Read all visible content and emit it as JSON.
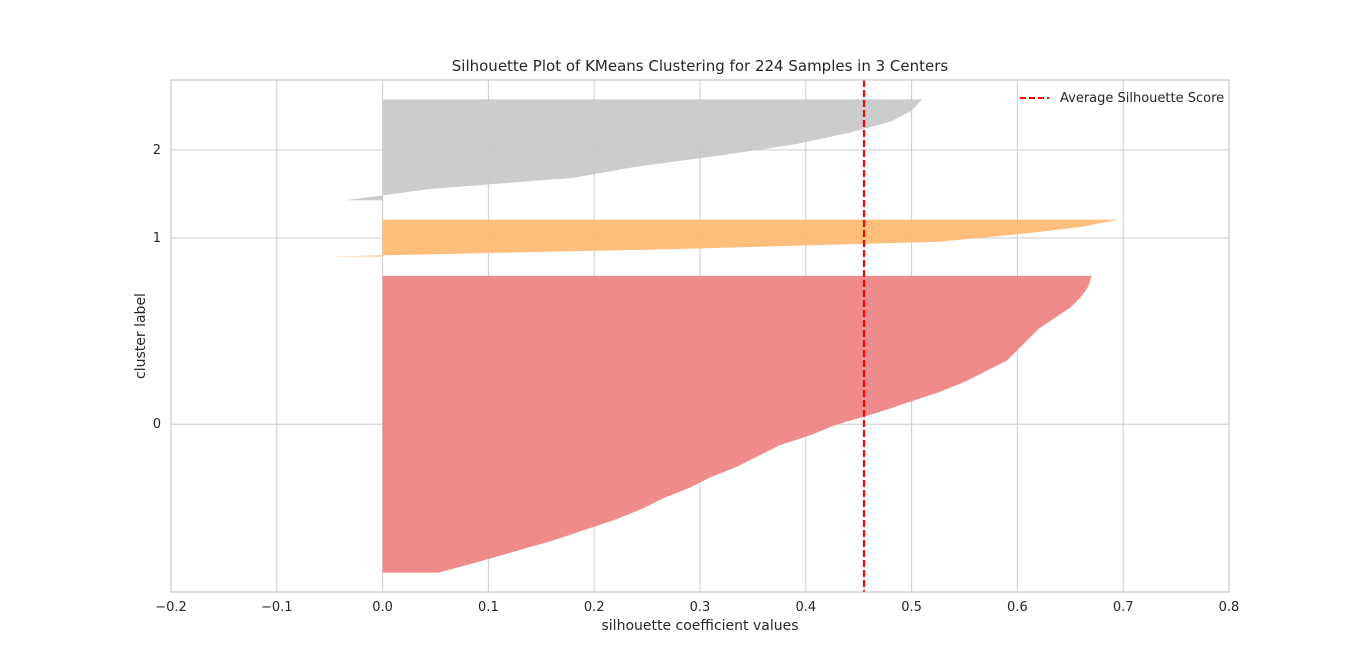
{
  "chart_data": {
    "type": "area",
    "orientation": "horizontal",
    "title": "Silhouette Plot of KMeans Clustering for 224 Samples in 3 Centers",
    "xlabel": "silhouette coefficient values",
    "ylabel": "cluster label",
    "xlim": [
      -0.2,
      0.8
    ],
    "x_ticks": [
      "−0.2",
      "−0.1",
      "0.0",
      "0.1",
      "0.2",
      "0.3",
      "0.4",
      "0.5",
      "0.6",
      "0.7",
      "0.8"
    ],
    "y_tick_labels": [
      "0",
      "1",
      "2"
    ],
    "grid": true,
    "legend": {
      "entries": [
        "Average Silhouette Score"
      ],
      "placement": "top-right"
    },
    "average_silhouette_score": 0.455,
    "clusters": [
      {
        "label": "0",
        "color": "#ee8181",
        "num_samples": 153,
        "sorted_values": [
          0.053,
          0.09,
          0.125,
          0.16,
          0.19,
          0.22,
          0.245,
          0.265,
          0.29,
          0.31,
          0.335,
          0.355,
          0.375,
          0.405,
          0.43,
          0.465,
          0.495,
          0.525,
          0.55,
          0.57,
          0.59,
          0.6,
          0.61,
          0.62,
          0.635,
          0.65,
          0.66,
          0.667,
          0.67
        ]
      },
      {
        "label": "1",
        "color": "#ffb970",
        "num_samples": 19,
        "sorted_values": [
          -0.05,
          0.275,
          0.525,
          0.6,
          0.66,
          0.695
        ]
      },
      {
        "label": "2",
        "color": "#c8c8c8",
        "num_samples": 52,
        "sorted_values": [
          -0.035,
          0.045,
          0.18,
          0.24,
          0.32,
          0.39,
          0.44,
          0.48,
          0.5,
          0.51
        ]
      }
    ]
  }
}
